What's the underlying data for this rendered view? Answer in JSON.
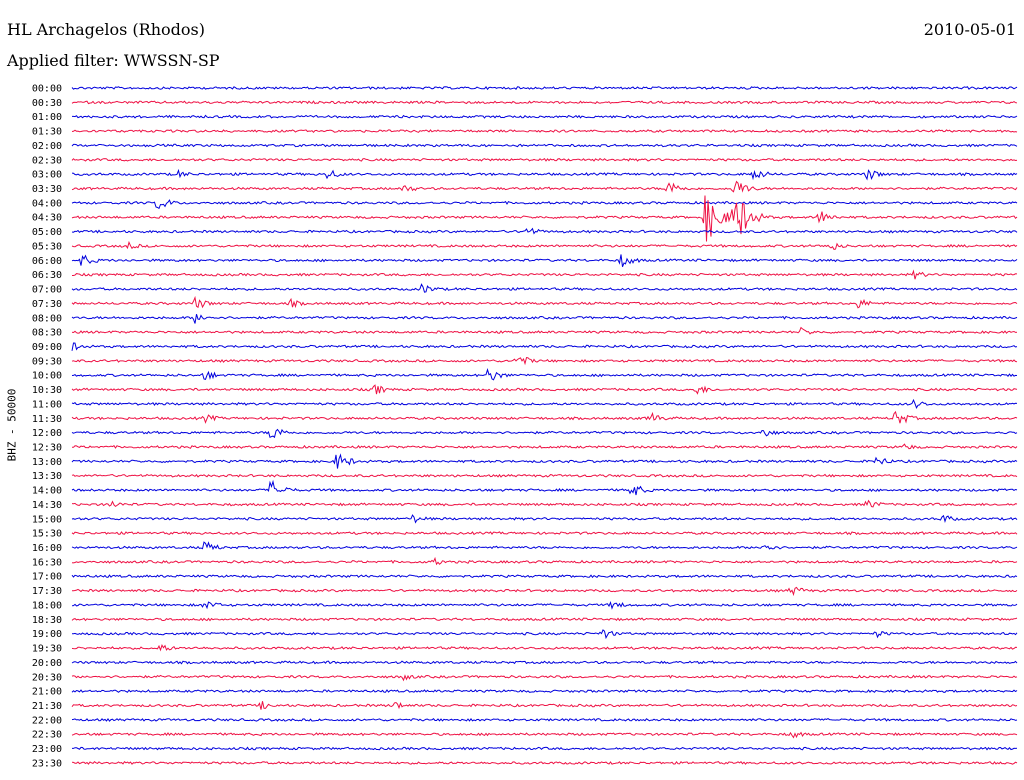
{
  "header": {
    "station": "HL Archagelos (Rhodos)",
    "date": "2010-05-01",
    "filter_label": "Applied filter: WWSSN-SP"
  },
  "colors": {
    "blue": "#0000dd",
    "red": "#ee1144"
  },
  "chart_data": {
    "type": "line",
    "title": "HL Archagelos (Rhodos)",
    "ylabel": "BHZ - 50000",
    "trace_labels": [
      "00:00",
      "00:30",
      "01:00",
      "01:30",
      "02:00",
      "02:30",
      "03:00",
      "03:30",
      "04:00",
      "04:30",
      "05:00",
      "05:30",
      "06:00",
      "06:30",
      "07:00",
      "07:30",
      "08:00",
      "08:30",
      "09:00",
      "09:30",
      "10:00",
      "10:30",
      "11:00",
      "11:30",
      "12:00",
      "12:30",
      "13:00",
      "13:30",
      "14:00",
      "14:30",
      "15:00",
      "15:30",
      "16:00",
      "16:30",
      "17:00",
      "17:30",
      "18:00",
      "18:30",
      "19:00",
      "19:30",
      "20:00",
      "20:30",
      "21:00",
      "21:30",
      "22:00",
      "22:30",
      "23:00",
      "23:30"
    ],
    "trace_colors": [
      "blue",
      "red"
    ],
    "events": [
      {
        "trace": "03:00",
        "t": 0.11,
        "amp": 5
      },
      {
        "trace": "03:00",
        "t": 0.27,
        "amp": 6
      },
      {
        "trace": "03:00",
        "t": 0.72,
        "amp": 7
      },
      {
        "trace": "03:00",
        "t": 0.84,
        "amp": 7
      },
      {
        "trace": "03:30",
        "t": 0.35,
        "amp": 5
      },
      {
        "trace": "03:30",
        "t": 0.63,
        "amp": 9
      },
      {
        "trace": "03:30",
        "t": 0.7,
        "amp": 11
      },
      {
        "trace": "04:00",
        "t": 0.09,
        "amp": 8
      },
      {
        "trace": "04:30",
        "t": 0.67,
        "amp": 30
      },
      {
        "trace": "04:30",
        "t": 0.7,
        "amp": 34
      },
      {
        "trace": "04:30",
        "t": 0.79,
        "amp": 8
      },
      {
        "trace": "05:00",
        "t": 0.48,
        "amp": 6
      },
      {
        "trace": "05:30",
        "t": 0.06,
        "amp": 4
      },
      {
        "trace": "05:30",
        "t": 0.8,
        "amp": 6
      },
      {
        "trace": "06:00",
        "t": 0.01,
        "amp": 7
      },
      {
        "trace": "06:00",
        "t": 0.58,
        "amp": 8
      },
      {
        "trace": "06:30",
        "t": 0.89,
        "amp": 5
      },
      {
        "trace": "07:00",
        "t": 0.37,
        "amp": 6
      },
      {
        "trace": "07:30",
        "t": 0.13,
        "amp": 7
      },
      {
        "trace": "07:30",
        "t": 0.23,
        "amp": 5
      },
      {
        "trace": "07:30",
        "t": 0.83,
        "amp": 6
      },
      {
        "trace": "08:00",
        "t": 0.13,
        "amp": 6
      },
      {
        "trace": "08:30",
        "t": 0.77,
        "amp": 5
      },
      {
        "trace": "09:00",
        "t": 0.0,
        "amp": 5
      },
      {
        "trace": "09:30",
        "t": 0.47,
        "amp": 8
      },
      {
        "trace": "10:00",
        "t": 0.14,
        "amp": 6
      },
      {
        "trace": "10:00",
        "t": 0.44,
        "amp": 8
      },
      {
        "trace": "10:30",
        "t": 0.32,
        "amp": 6
      },
      {
        "trace": "10:30",
        "t": 0.66,
        "amp": 6
      },
      {
        "trace": "11:00",
        "t": 0.89,
        "amp": 5
      },
      {
        "trace": "11:30",
        "t": 0.14,
        "amp": 5
      },
      {
        "trace": "11:30",
        "t": 0.61,
        "amp": 7
      },
      {
        "trace": "11:30",
        "t": 0.87,
        "amp": 9
      },
      {
        "trace": "12:00",
        "t": 0.21,
        "amp": 9
      },
      {
        "trace": "12:00",
        "t": 0.73,
        "amp": 6
      },
      {
        "trace": "12:30",
        "t": 0.88,
        "amp": 4
      },
      {
        "trace": "13:00",
        "t": 0.28,
        "amp": 10
      },
      {
        "trace": "13:00",
        "t": 0.85,
        "amp": 6
      },
      {
        "trace": "14:00",
        "t": 0.21,
        "amp": 11
      },
      {
        "trace": "14:00",
        "t": 0.59,
        "amp": 9
      },
      {
        "trace": "14:30",
        "t": 0.04,
        "amp": 5
      },
      {
        "trace": "14:30",
        "t": 0.84,
        "amp": 6
      },
      {
        "trace": "15:00",
        "t": 0.36,
        "amp": 5
      },
      {
        "trace": "15:00",
        "t": 0.92,
        "amp": 5
      },
      {
        "trace": "16:00",
        "t": 0.14,
        "amp": 7
      },
      {
        "trace": "16:00",
        "t": 0.73,
        "amp": 6
      },
      {
        "trace": "16:30",
        "t": 0.38,
        "amp": 5
      },
      {
        "trace": "17:30",
        "t": 0.76,
        "amp": 6
      },
      {
        "trace": "18:00",
        "t": 0.14,
        "amp": 6
      },
      {
        "trace": "18:00",
        "t": 0.57,
        "amp": 5
      },
      {
        "trace": "19:00",
        "t": 0.56,
        "amp": 6
      },
      {
        "trace": "19:00",
        "t": 0.85,
        "amp": 4
      },
      {
        "trace": "19:30",
        "t": 0.09,
        "amp": 6
      },
      {
        "trace": "20:30",
        "t": 0.35,
        "amp": 4
      },
      {
        "trace": "21:30",
        "t": 0.2,
        "amp": 5
      },
      {
        "trace": "21:30",
        "t": 0.34,
        "amp": 5
      },
      {
        "trace": "22:30",
        "t": 0.76,
        "amp": 5
      }
    ]
  }
}
